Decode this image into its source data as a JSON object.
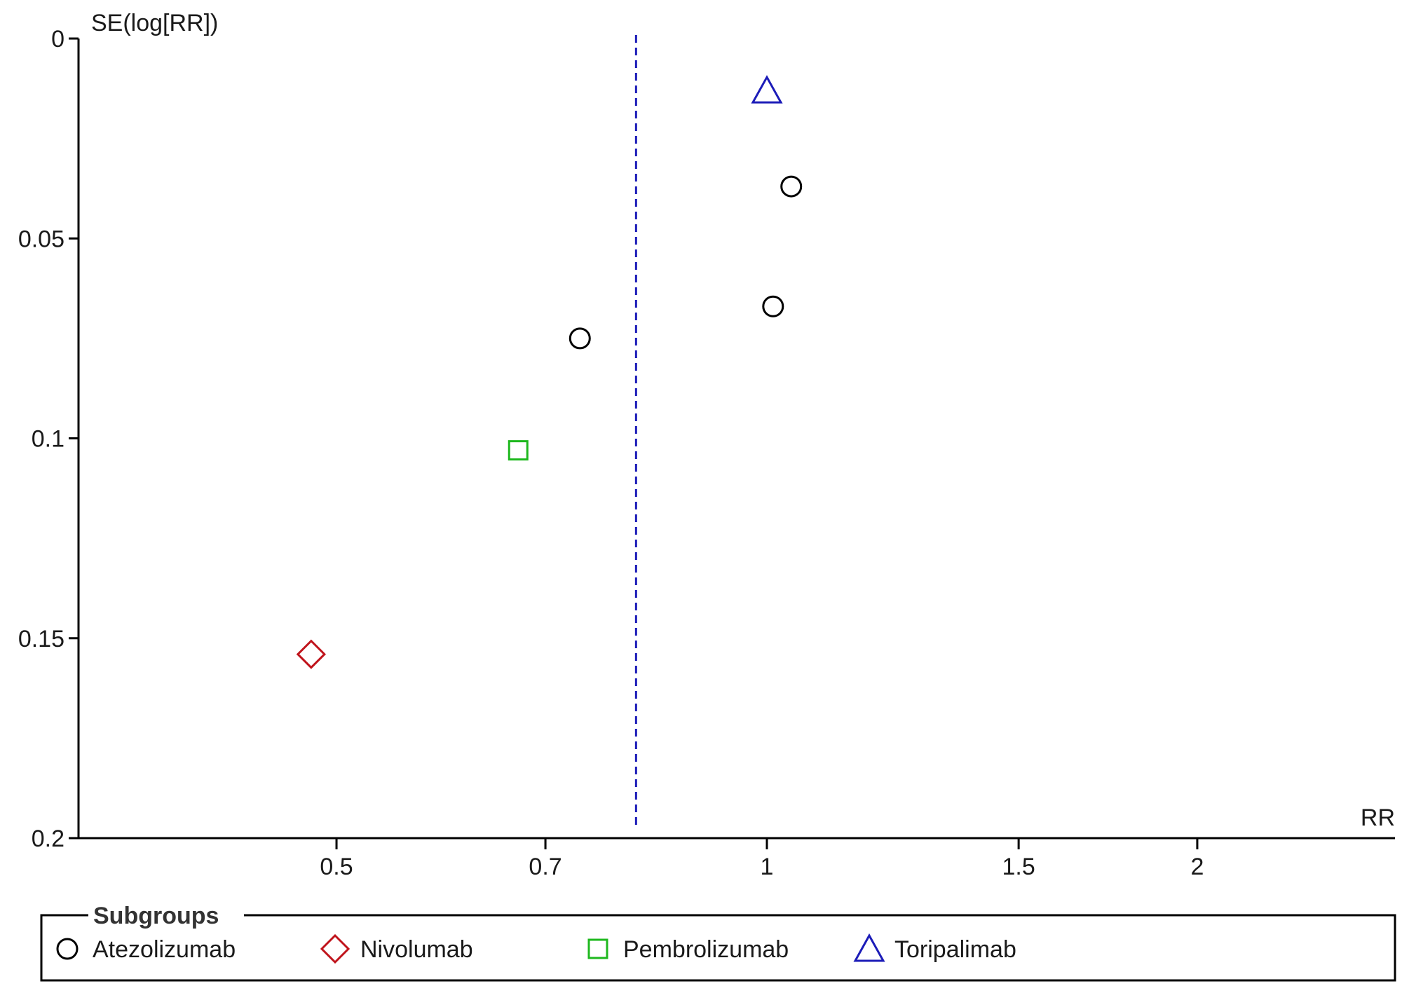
{
  "chart_data": {
    "type": "scatter",
    "plot_kind": "funnel plot",
    "xlabel": "RR",
    "ylabel": "SE(log[RR])",
    "x_scale": "log",
    "x_ticks": [
      "0.5",
      "0.7",
      "1",
      "1.5",
      "2"
    ],
    "x_tick_values": [
      0.5,
      0.7,
      1,
      1.5,
      2
    ],
    "xlim": [
      0.33,
      2.75
    ],
    "y_inverted": true,
    "y_ticks": [
      "0",
      "0.05",
      "0.1",
      "0.15",
      "0.2"
    ],
    "y_tick_values": [
      0,
      0.05,
      0.1,
      0.15,
      0.2
    ],
    "ylim": [
      0,
      0.2
    ],
    "pooled_estimate": {
      "x": 0.81,
      "style": "dashed",
      "color": "#1c1cb8"
    },
    "legend": {
      "title": "Subgroups",
      "position": "bottom"
    },
    "series": [
      {
        "name": "Atezolizumab",
        "marker": "circle",
        "color": "#000000",
        "points": [
          {
            "x": 1.04,
            "y": 0.037
          },
          {
            "x": 1.01,
            "y": 0.067
          },
          {
            "x": 0.74,
            "y": 0.075
          }
        ]
      },
      {
        "name": "Nivolumab",
        "marker": "diamond",
        "color": "#c0141c",
        "points": [
          {
            "x": 0.48,
            "y": 0.154
          }
        ]
      },
      {
        "name": "Pembrolizumab",
        "marker": "square",
        "color": "#1eb81e",
        "points": [
          {
            "x": 0.67,
            "y": 0.103
          }
        ]
      },
      {
        "name": "Toripalimab",
        "marker": "triangle",
        "color": "#1c1cb8",
        "points": [
          {
            "x": 1.0,
            "y": 0.013
          }
        ]
      }
    ]
  }
}
